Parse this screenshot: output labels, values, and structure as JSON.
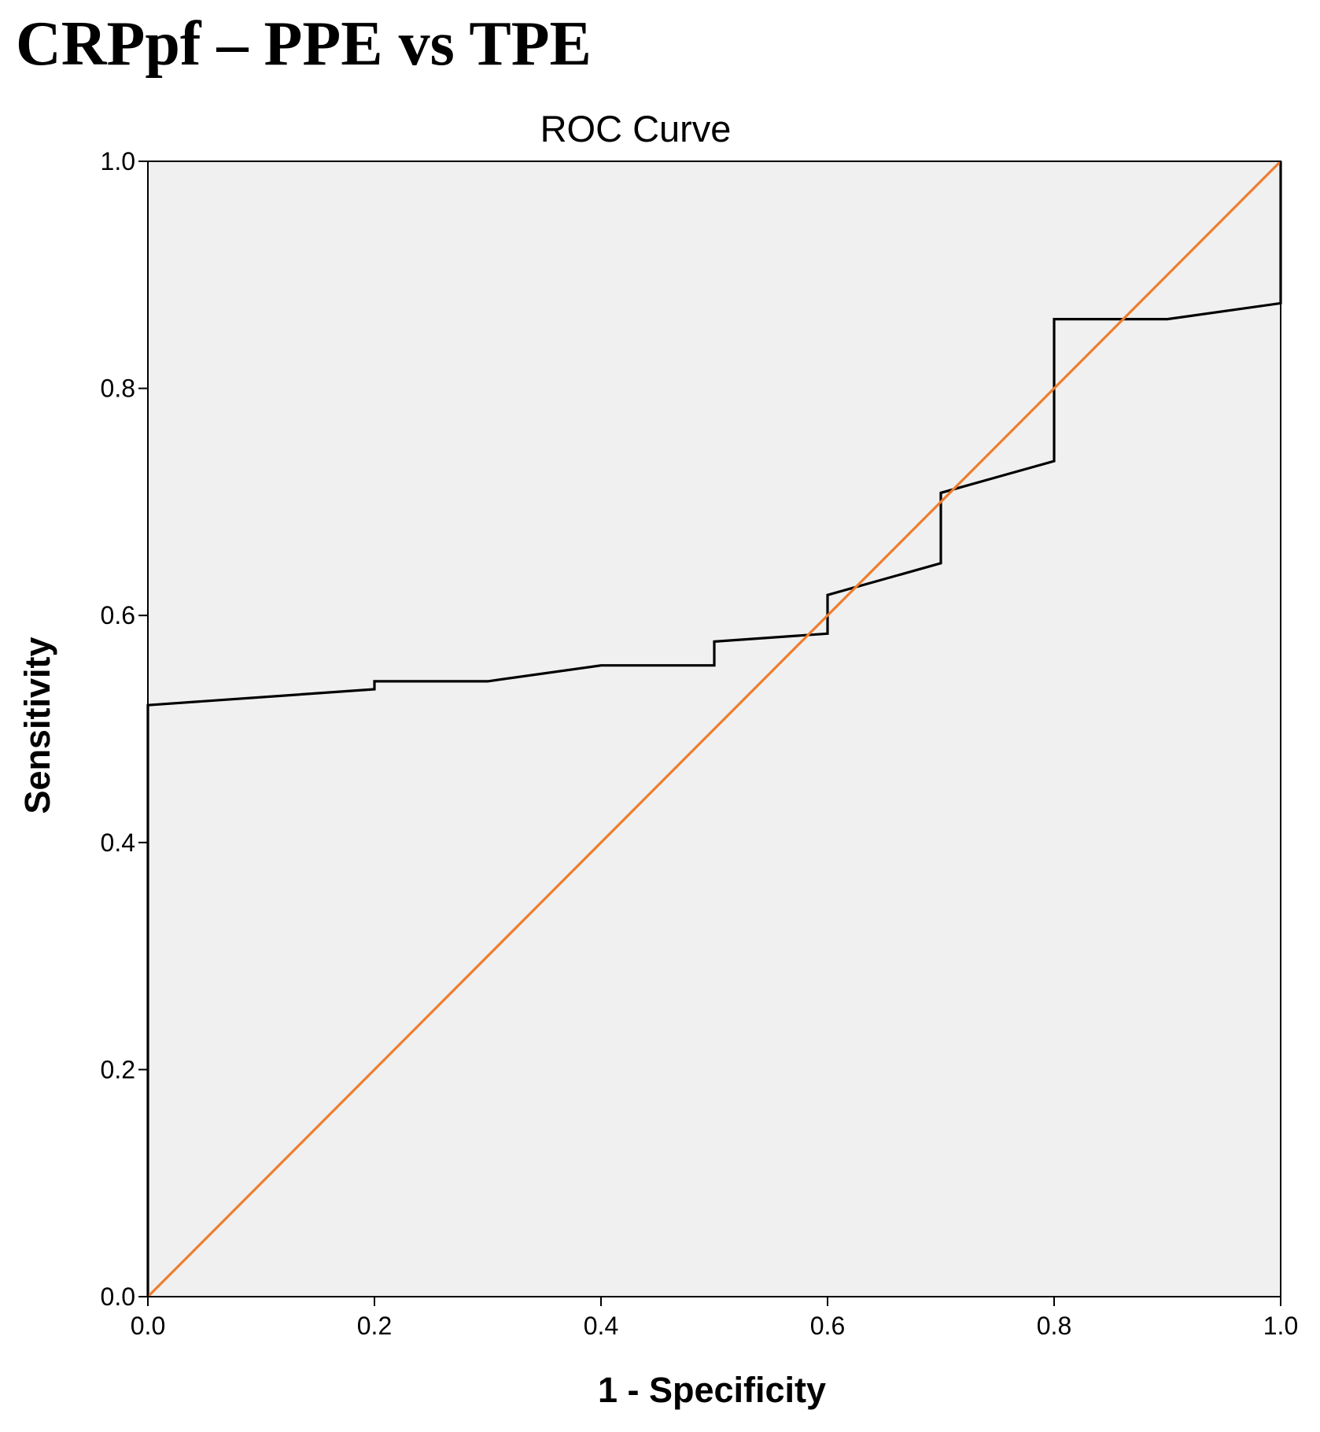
{
  "heading": "CRPpf – PPE vs TPE",
  "chart_data": {
    "type": "line",
    "title": "ROC Curve",
    "xlabel": "1 - Specificity",
    "ylabel": "Sensitivity",
    "xlim": [
      0,
      1
    ],
    "ylim": [
      0,
      1
    ],
    "xticks": [
      "0.0",
      "0.2",
      "0.4",
      "0.6",
      "0.8",
      "1.0"
    ],
    "yticks": [
      "0.0",
      "0.2",
      "0.4",
      "0.6",
      "0.8",
      "1.0"
    ],
    "grid": false,
    "plot_background": "#f0f0f0",
    "series": [
      {
        "color": "#000000",
        "points": [
          [
            0.0,
            0.0
          ],
          [
            0.0,
            0.521
          ],
          [
            0.2,
            0.535
          ],
          [
            0.2,
            0.542
          ],
          [
            0.3,
            0.542
          ],
          [
            0.4,
            0.556
          ],
          [
            0.5,
            0.556
          ],
          [
            0.5,
            0.577
          ],
          [
            0.6,
            0.584
          ],
          [
            0.6,
            0.618
          ],
          [
            0.7,
            0.646
          ],
          [
            0.7,
            0.708
          ],
          [
            0.8,
            0.736
          ],
          [
            0.8,
            0.861
          ],
          [
            0.9,
            0.861
          ],
          [
            1.0,
            0.875
          ],
          [
            1.0,
            1.0
          ]
        ]
      },
      {
        "color": "#ef7d2c",
        "points": [
          [
            0.0,
            0.0
          ],
          [
            1.0,
            1.0
          ]
        ]
      }
    ]
  }
}
